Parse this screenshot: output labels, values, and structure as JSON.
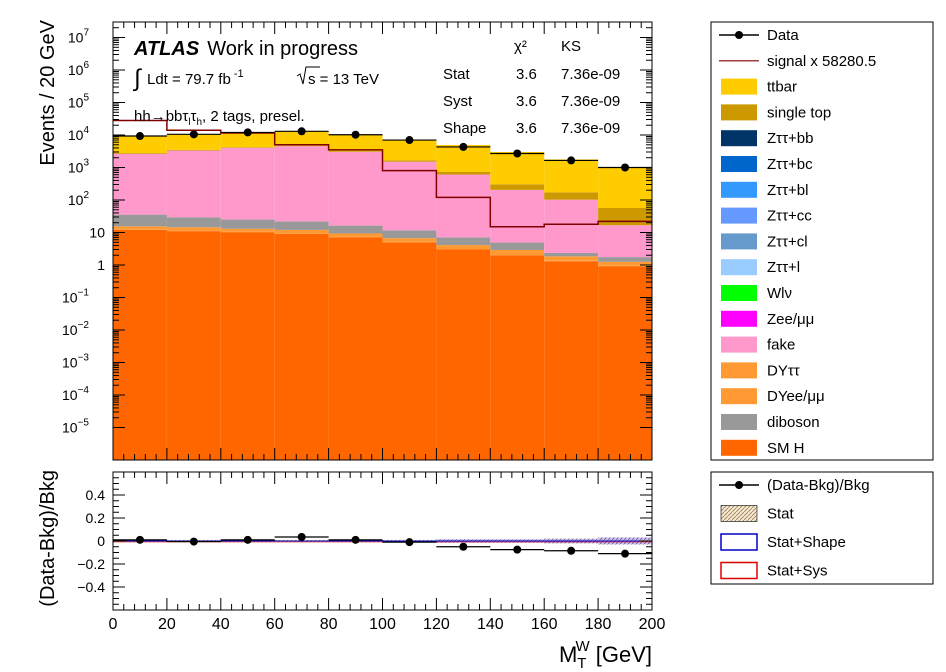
{
  "chart_data": [
    {
      "type": "bar",
      "subtype": "stacked-histogram",
      "log_y": true,
      "xlim": [
        0,
        200
      ],
      "ylim": [
        1e-06,
        30000000.0
      ],
      "bin_edges": [
        0,
        20,
        40,
        60,
        80,
        100,
        120,
        140,
        160,
        180,
        200
      ],
      "ylabel": "Events / 20 GeV",
      "x_ticks": [
        "0",
        "20",
        "40",
        "60",
        "80",
        "100",
        "120",
        "140",
        "160",
        "180",
        "200"
      ],
      "y_ticks": [
        {
          "mant": "10",
          "exp": "7",
          "value": 10000000.0
        },
        {
          "mant": "10",
          "exp": "6",
          "value": 1000000.0
        },
        {
          "mant": "10",
          "exp": "5",
          "value": 100000.0
        },
        {
          "mant": "10",
          "exp": "4",
          "value": 10000.0
        },
        {
          "mant": "10",
          "exp": "3",
          "value": 1000.0
        },
        {
          "mant": "10",
          "exp": "2",
          "value": 100.0
        },
        {
          "mant": "10",
          "exp": "",
          "value": 10
        },
        {
          "mant": "1",
          "exp": "",
          "value": 1
        },
        {
          "mant": "10",
          "exp": "−1",
          "value": 0.1
        },
        {
          "mant": "10",
          "exp": "−2",
          "value": 0.01
        },
        {
          "mant": "10",
          "exp": "−3",
          "value": 0.001
        },
        {
          "mant": "10",
          "exp": "−4",
          "value": 0.0001
        },
        {
          "mant": "10",
          "exp": "−5",
          "value": 1e-05
        }
      ],
      "stack_bottom_to_top": [
        {
          "name": "SM H",
          "color": "#ff6600",
          "values": [
            12,
            11,
            10,
            9,
            7,
            5,
            3,
            2,
            1.3,
            0.9
          ]
        },
        {
          "name": "DYee/μμ",
          "color": "#ff9933",
          "values": [
            0.5,
            0.5,
            0.5,
            0.5,
            0.3,
            0.2,
            0.1,
            0.1,
            0.05,
            0.05
          ]
        },
        {
          "name": "DYττ",
          "color": "#ff9933",
          "values": [
            3,
            3,
            2.5,
            2.5,
            2,
            1.5,
            1,
            0.8,
            0.5,
            0.3
          ]
        },
        {
          "name": "diboson",
          "color": "#999999",
          "values": [
            20,
            15,
            12,
            10,
            7,
            5,
            3,
            2,
            0.5,
            0.5
          ]
        },
        {
          "name": "fake",
          "color": "#ff99cc",
          "values": [
            2600,
            3300,
            4000,
            4500,
            3000,
            1500,
            600,
            200,
            100,
            15
          ]
        },
        {
          "name": "Zττ+l",
          "color": "#99ccff",
          "values": [
            0,
            0,
            0,
            0,
            0,
            0,
            0,
            0,
            0,
            0
          ]
        },
        {
          "name": "Zττ+cl",
          "color": "#6699cc",
          "values": [
            0,
            0,
            0,
            0,
            0,
            0,
            0,
            0,
            0,
            0
          ]
        },
        {
          "name": "Zττ+cc",
          "color": "#6699ff",
          "values": [
            0,
            0,
            0,
            0,
            0,
            0,
            0,
            0,
            0,
            0
          ]
        },
        {
          "name": "Zττ+bl",
          "color": "#3399ff",
          "values": [
            0,
            0,
            0,
            0,
            0,
            0,
            0,
            0,
            0,
            0
          ]
        },
        {
          "name": "Zττ+bc",
          "color": "#0066cc",
          "values": [
            0,
            0,
            0,
            0,
            0,
            0,
            0,
            0,
            0,
            0
          ]
        },
        {
          "name": "Zττ+bb",
          "color": "#003366",
          "values": [
            0,
            0,
            0,
            0,
            0,
            0,
            0,
            0,
            0,
            0
          ]
        },
        {
          "name": "Zee/μμ",
          "color": "#ff00ff",
          "values": [
            0,
            0,
            0,
            0,
            0,
            0,
            0,
            0,
            0,
            0
          ]
        },
        {
          "name": "Wlν",
          "color": "#00ff00",
          "values": [
            0,
            0,
            0,
            0,
            0,
            0,
            0,
            0,
            0,
            0
          ]
        },
        {
          "name": "single top",
          "color": "#cc9900",
          "values": [
            150,
            180,
            200,
            200,
            180,
            150,
            120,
            100,
            70,
            40
          ]
        },
        {
          "name": "ttbar",
          "color": "#ffcc00",
          "values": [
            6500,
            7200,
            7800,
            8300,
            6800,
            5500,
            4200,
            2700,
            1600,
            950
          ]
        }
      ],
      "signal": {
        "name": "signal x 58280.5",
        "color": "#800000",
        "values": [
          28000,
          14000,
          11500,
          5000,
          3500,
          800,
          120,
          15,
          18,
          22
        ]
      },
      "data": {
        "name": "Data",
        "color": "#000000",
        "x": [
          10,
          30,
          50,
          70,
          90,
          110,
          130,
          150,
          170,
          190
        ],
        "y": [
          9300,
          10500,
          12000,
          13000,
          10200,
          7000,
          4300,
          2700,
          1650,
          1000
        ]
      }
    },
    {
      "type": "scatter",
      "subtype": "ratio-panel",
      "xlim": [
        0,
        200
      ],
      "ylim": [
        -0.6,
        0.6
      ],
      "xlabel_main": "M",
      "xlabel_sup": "W",
      "xlabel_sub": "T",
      "xlabel_unit": " [GeV]",
      "ylabel": "(Data-Bkg)/Bkg",
      "y_ticks": [
        "0.4",
        "0.2",
        "0",
        "−0.2",
        "−0.4"
      ],
      "y_tick_values": [
        0.4,
        0.2,
        0,
        -0.2,
        -0.4
      ],
      "points": {
        "name": "(Data-Bkg)/Bkg",
        "x": [
          10,
          30,
          50,
          70,
          90,
          110,
          130,
          150,
          170,
          190
        ],
        "y": [
          0.01,
          -0.005,
          0.01,
          0.035,
          0.01,
          -0.01,
          -0.05,
          -0.075,
          -0.085,
          -0.11
        ]
      },
      "stat_band_halfwidth": [
        0.01,
        0.01,
        0.01,
        0.01,
        0.01,
        0.01,
        0.015,
        0.015,
        0.02,
        0.03
      ]
    }
  ],
  "labels": {
    "atlas": "ATLAS",
    "work": "Work in progress",
    "lumi_pre": "Ldt = 79.7 fb",
    "lumi_sup": "-1",
    "sqrts": "s = 13 TeV",
    "region_pre": "hh",
    "region_arrow": "→",
    "region_bb": "bbτ",
    "region_l": "l",
    "region_tau": "τ",
    "region_h": "h",
    "region_post": ", 2 tags, presel."
  },
  "stats_table": {
    "headers": [
      "χ²",
      "KS"
    ],
    "rows": [
      {
        "label": "Stat",
        "chi2": "3.6",
        "ks": "7.36e-09"
      },
      {
        "label": "Syst",
        "chi2": "3.6",
        "ks": "7.36e-09"
      },
      {
        "label": "Shape",
        "chi2": "3.6",
        "ks": "7.36e-09"
      }
    ]
  },
  "legend_main": [
    {
      "label": "Data",
      "kind": "marker",
      "color": "#000000"
    },
    {
      "label": "signal x 58280.5",
      "kind": "line",
      "color": "#800000"
    },
    {
      "label": "ttbar",
      "kind": "fill",
      "color": "#ffcc00"
    },
    {
      "label": "single top",
      "kind": "fill",
      "color": "#cc9900"
    },
    {
      "label": "Zττ+bb",
      "kind": "fill",
      "color": "#003366"
    },
    {
      "label": "Zττ+bc",
      "kind": "fill",
      "color": "#0066cc"
    },
    {
      "label": "Zττ+bl",
      "kind": "fill",
      "color": "#3399ff"
    },
    {
      "label": "Zττ+cc",
      "kind": "fill",
      "color": "#6699ff"
    },
    {
      "label": "Zττ+cl",
      "kind": "fill",
      "color": "#6699cc"
    },
    {
      "label": "Zττ+l",
      "kind": "fill",
      "color": "#99ccff"
    },
    {
      "label": "Wlν",
      "kind": "fill",
      "color": "#00ff00"
    },
    {
      "label": "Zee/μμ",
      "kind": "fill",
      "color": "#ff00ff"
    },
    {
      "label": "fake",
      "kind": "fill",
      "color": "#ff99cc"
    },
    {
      "label": "DYττ",
      "kind": "fill",
      "color": "#ff9933"
    },
    {
      "label": "DYee/μμ",
      "kind": "fill",
      "color": "#ff9933"
    },
    {
      "label": "diboson",
      "kind": "fill",
      "color": "#999999"
    },
    {
      "label": "SM H",
      "kind": "fill",
      "color": "#ff6600"
    }
  ],
  "legend_ratio": [
    {
      "label": "(Data-Bkg)/Bkg",
      "kind": "marker",
      "color": "#000000"
    },
    {
      "label": "Stat",
      "kind": "hatch",
      "color": "#d9c09a"
    },
    {
      "label": "Stat+Shape",
      "kind": "box",
      "color": "#0000cc"
    },
    {
      "label": "Stat+Sys",
      "kind": "box",
      "color": "#dd0000"
    }
  ]
}
